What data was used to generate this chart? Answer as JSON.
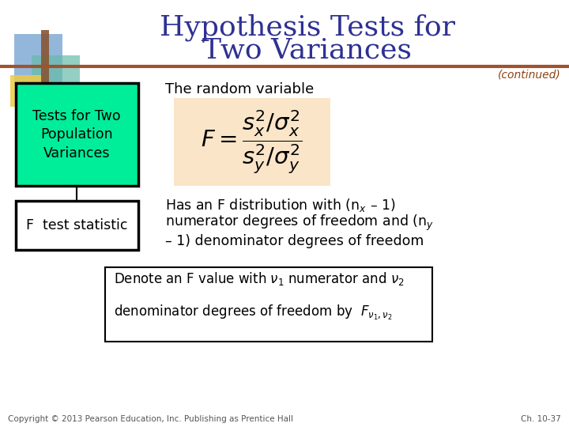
{
  "title_line1": "Hypothesis Tests for",
  "title_line2": "Two Variances",
  "title_color": "#2E3192",
  "title_fontsize": 26,
  "continued_text": "(continued)",
  "continued_color": "#8B4513",
  "slide_bg": "#FFFFFF",
  "separator_color": "#A0522D",
  "box1_text": "Tests for Two\nPopulation\nVariances",
  "box1_bg": "#00EE99",
  "box1_border": "#000000",
  "box2_text": "F  test statistic",
  "box2_bg": "#FFFFFF",
  "box2_border": "#000000",
  "random_var_label": "The random variable",
  "formula_bg": "#FAE5C8",
  "formula_color": "#000000",
  "copyright_text": "Copyright © 2013 Pearson Education, Inc. Publishing as Prentice Hall",
  "chapter_text": "Ch. 10-37",
  "text_color": "#000000",
  "gray_text": "#555555",
  "logo_blue": "#6699CC",
  "logo_teal": "#66BBAA",
  "logo_yellow": "#EECC44",
  "logo_brown": "#885533"
}
